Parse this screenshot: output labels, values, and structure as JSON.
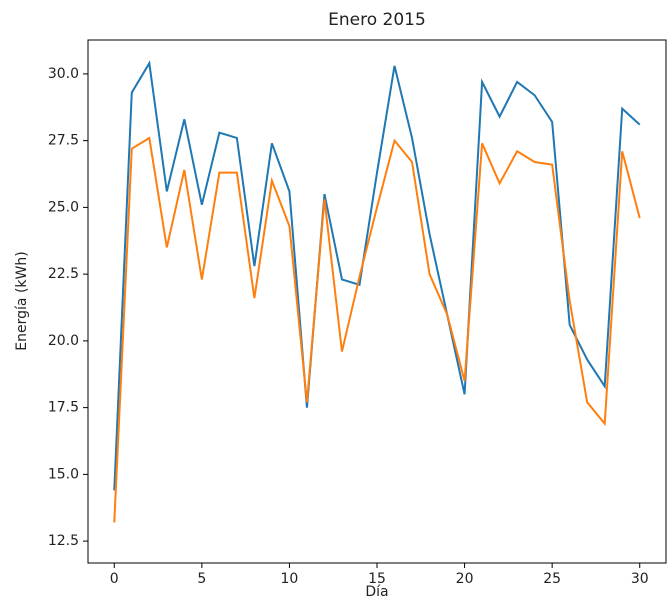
{
  "chart_data": {
    "type": "line",
    "title": "Enero 2015",
    "x_label": "Día",
    "y_label": "Energía (kWh)",
    "x": [
      0,
      1,
      2,
      3,
      4,
      5,
      6,
      7,
      8,
      9,
      10,
      11,
      12,
      13,
      14,
      15,
      16,
      17,
      18,
      19,
      20,
      21,
      22,
      23,
      24,
      25,
      26,
      27,
      28,
      29,
      30
    ],
    "series": [
      {
        "color": "#1f77b4",
        "values": [
          14.4,
          29.3,
          30.4,
          25.6,
          28.3,
          25.1,
          27.8,
          27.6,
          22.8,
          27.4,
          25.6,
          17.5,
          25.5,
          22.3,
          22.1,
          26.3,
          30.3,
          27.6,
          24.0,
          21.0,
          18.0,
          29.7,
          28.4,
          29.7,
          29.2,
          28.2,
          20.6,
          19.3,
          18.3,
          28.7,
          28.1
        ]
      },
      {
        "color": "#ff7f0e",
        "values": [
          13.2,
          27.2,
          27.6,
          23.5,
          26.4,
          22.3,
          26.3,
          26.3,
          21.6,
          26.0,
          24.3,
          17.7,
          25.3,
          19.6,
          22.4,
          25.0,
          27.5,
          26.7,
          22.5,
          21.0,
          18.5,
          27.4,
          25.9,
          27.1,
          26.7,
          26.6,
          21.5,
          17.7,
          16.9,
          27.1,
          24.6
        ]
      }
    ],
    "xlim": [
      -1.5,
      31.5
    ],
    "ylim": [
      11.68,
      31.27
    ],
    "xticks": [
      0,
      5,
      10,
      15,
      20,
      25,
      30
    ],
    "yticks": [
      12.5,
      {
        "value": 15,
        "label": "15.0"
      },
      17.5,
      {
        "value": 20,
        "label": "20.0"
      },
      22.5,
      {
        "value": 25,
        "label": "25.0"
      },
      27.5,
      {
        "value": 30,
        "label": "30.0"
      }
    ]
  }
}
